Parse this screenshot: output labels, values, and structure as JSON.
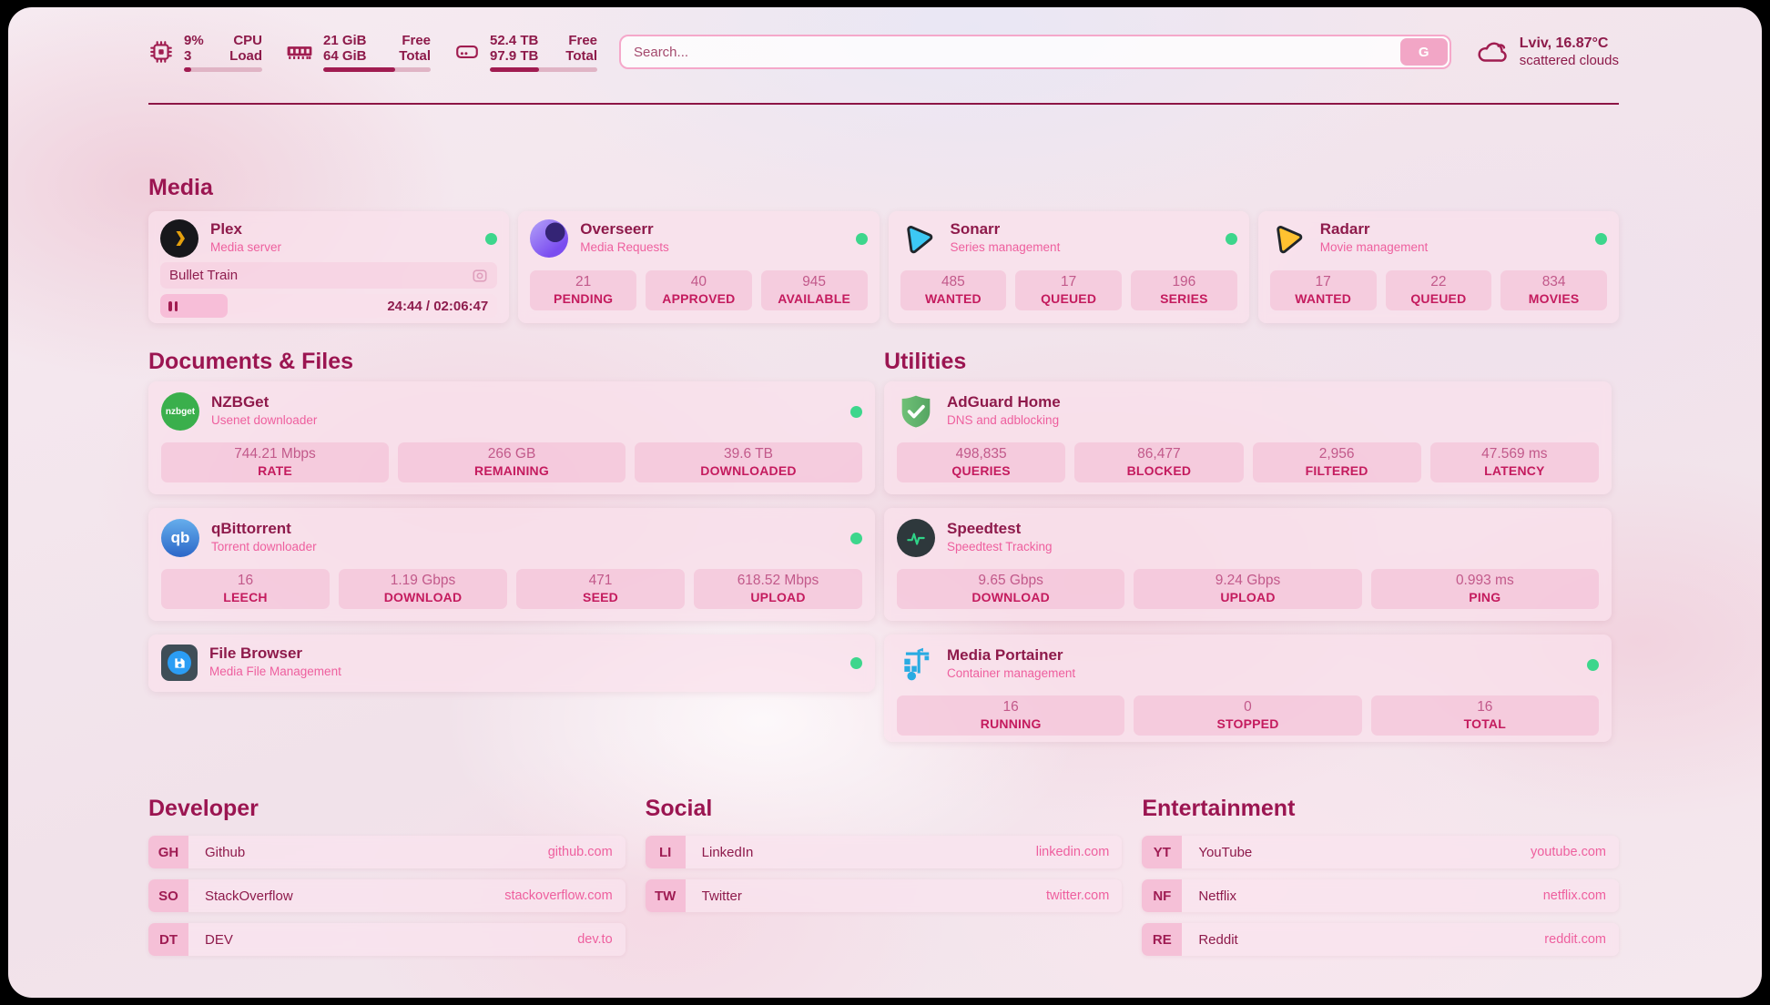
{
  "colors": {
    "accent_dark": "#8e1a4b",
    "heading": "#9b1551",
    "subtitle_pink": "#ee5f9e",
    "stat_value": "#c2598a",
    "stat_label": "#c41b5e",
    "online_green": "#3dd68c",
    "progress_fill": "#a11c51",
    "card_background": "#f9e0ec"
  },
  "header": {
    "system_stats": [
      {
        "id": "cpu",
        "row1_value": "9%",
        "row1_label": "CPU",
        "row2_value": "3",
        "row2_label": "Load",
        "usage_pct": 9
      },
      {
        "id": "memory",
        "row1_value": "21 GiB",
        "row1_label": "Free",
        "row2_value": "64 GiB",
        "row2_label": "Total",
        "usage_pct": 67
      },
      {
        "id": "storage",
        "row1_value": "52.4 TB",
        "row1_label": "Free",
        "row2_value": "97.9 TB",
        "row2_label": "Total",
        "usage_pct": 46
      }
    ],
    "search": {
      "placeholder": "Search...",
      "engine_button": "G"
    },
    "weather": {
      "location": "Lviv, 16.87°C",
      "condition": "scattered clouds"
    }
  },
  "media": {
    "section_title": "Media",
    "plex": {
      "name": "Plex",
      "description": "Media server",
      "status": "online",
      "now_playing": {
        "title": "Bullet Train",
        "time": "24:44 / 02:06:47",
        "progress_pct": 20,
        "state": "paused"
      }
    },
    "overseerr": {
      "name": "Overseerr",
      "description": "Media Requests",
      "status": "online",
      "stats": [
        {
          "value": "21",
          "label": "PENDING"
        },
        {
          "value": "40",
          "label": "APPROVED"
        },
        {
          "value": "945",
          "label": "AVAILABLE"
        }
      ]
    },
    "sonarr": {
      "name": "Sonarr",
      "description": "Series management",
      "status": "online",
      "stats": [
        {
          "value": "485",
          "label": "WANTED"
        },
        {
          "value": "17",
          "label": "QUEUED"
        },
        {
          "value": "196",
          "label": "SERIES"
        }
      ]
    },
    "radarr": {
      "name": "Radarr",
      "description": "Movie management",
      "status": "online",
      "stats": [
        {
          "value": "17",
          "label": "WANTED"
        },
        {
          "value": "22",
          "label": "QUEUED"
        },
        {
          "value": "834",
          "label": "MOVIES"
        }
      ]
    }
  },
  "documents": {
    "section_title": "Documents & Files",
    "nzbget": {
      "name": "NZBGet",
      "description": "Usenet downloader",
      "status": "online",
      "stats": [
        {
          "value": "744.21 Mbps",
          "label": "RATE"
        },
        {
          "value": "266 GB",
          "label": "REMAINING"
        },
        {
          "value": "39.6 TB",
          "label": "DOWNLOADED"
        }
      ]
    },
    "qbittorrent": {
      "name": "qBittorrent",
      "description": "Torrent downloader",
      "status": "online",
      "stats": [
        {
          "value": "16",
          "label": "LEECH"
        },
        {
          "value": "1.19 Gbps",
          "label": "DOWNLOAD"
        },
        {
          "value": "471",
          "label": "SEED"
        },
        {
          "value": "618.52 Mbps",
          "label": "UPLOAD"
        }
      ]
    },
    "filebrowser": {
      "name": "File Browser",
      "description": "Media File Management",
      "status": "online"
    }
  },
  "utilities": {
    "section_title": "Utilities",
    "adguard": {
      "name": "AdGuard Home",
      "description": "DNS and adblocking",
      "stats": [
        {
          "value": "498,835",
          "label": "QUERIES"
        },
        {
          "value": "86,477",
          "label": "BLOCKED"
        },
        {
          "value": "2,956",
          "label": "FILTERED"
        },
        {
          "value": "47.569 ms",
          "label": "LATENCY"
        }
      ]
    },
    "speedtest": {
      "name": "Speedtest",
      "description": "Speedtest Tracking",
      "stats": [
        {
          "value": "9.65 Gbps",
          "label": "DOWNLOAD"
        },
        {
          "value": "9.24 Gbps",
          "label": "UPLOAD"
        },
        {
          "value": "0.993 ms",
          "label": "PING"
        }
      ]
    },
    "portainer": {
      "name": "Media Portainer",
      "description": "Container management",
      "status": "online",
      "stats": [
        {
          "value": "16",
          "label": "RUNNING"
        },
        {
          "value": "0",
          "label": "STOPPED"
        },
        {
          "value": "16",
          "label": "TOTAL"
        }
      ]
    }
  },
  "bookmarks": [
    {
      "section_title": "Developer",
      "links": [
        {
          "abbr": "GH",
          "name": "Github",
          "url": "github.com"
        },
        {
          "abbr": "SO",
          "name": "StackOverflow",
          "url": "stackoverflow.com"
        },
        {
          "abbr": "DT",
          "name": "DEV",
          "url": "dev.to"
        }
      ]
    },
    {
      "section_title": "Social",
      "links": [
        {
          "abbr": "LI",
          "name": "LinkedIn",
          "url": "linkedin.com"
        },
        {
          "abbr": "TW",
          "name": "Twitter",
          "url": "twitter.com"
        }
      ]
    },
    {
      "section_title": "Entertainment",
      "links": [
        {
          "abbr": "YT",
          "name": "YouTube",
          "url": "youtube.com"
        },
        {
          "abbr": "NF",
          "name": "Netflix",
          "url": "netflix.com"
        },
        {
          "abbr": "RE",
          "name": "Reddit",
          "url": "reddit.com"
        }
      ]
    }
  ]
}
